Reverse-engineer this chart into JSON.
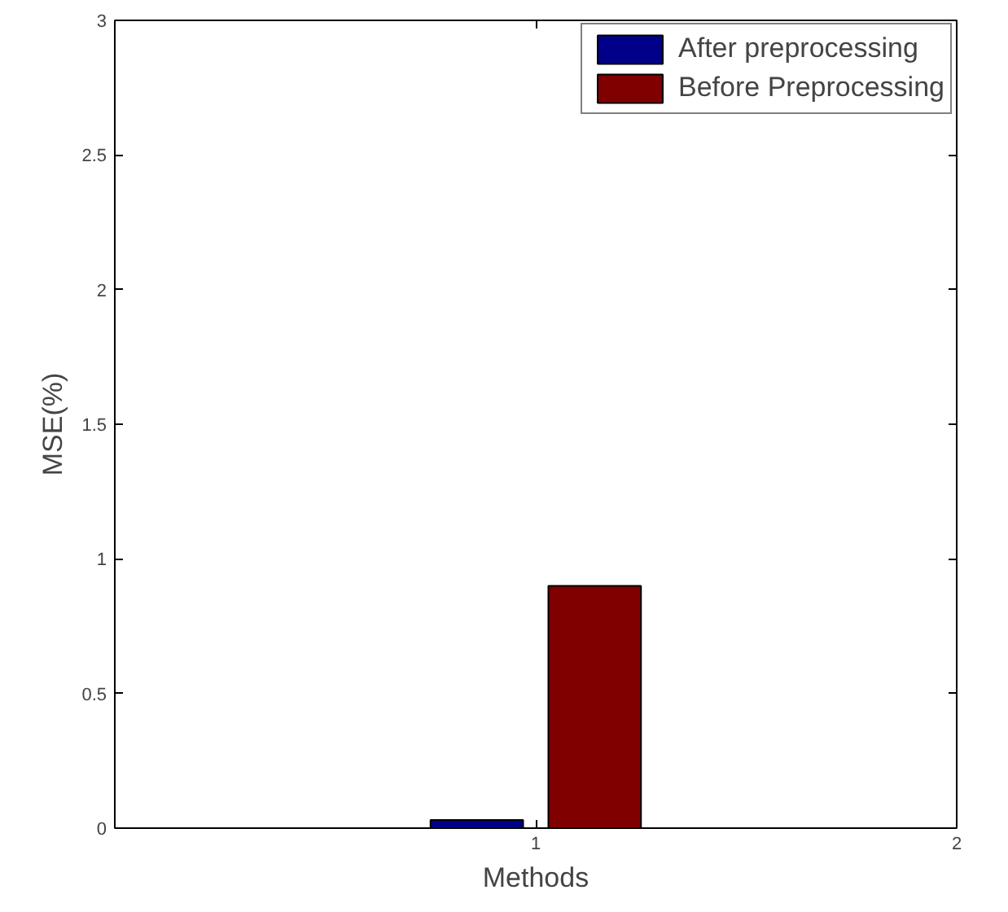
{
  "chart_data": {
    "type": "bar",
    "xlabel": "Methods",
    "ylabel": "MSE(%)",
    "series": [
      {
        "name": "After preprocessing",
        "color": "#00008b",
        "x": [
          0.86
        ],
        "values": [
          0.03
        ]
      },
      {
        "name": "Before Preprocessing",
        "color": "#800000",
        "x": [
          1.14
        ],
        "values": [
          0.9
        ]
      }
    ],
    "xlim": [
      0,
      2
    ],
    "xticks": [
      1,
      2
    ],
    "ylim": [
      0,
      3
    ],
    "yticks": [
      0,
      0.5,
      1,
      1.5,
      2,
      2.5,
      3
    ],
    "grid": false,
    "legend": "top right"
  }
}
